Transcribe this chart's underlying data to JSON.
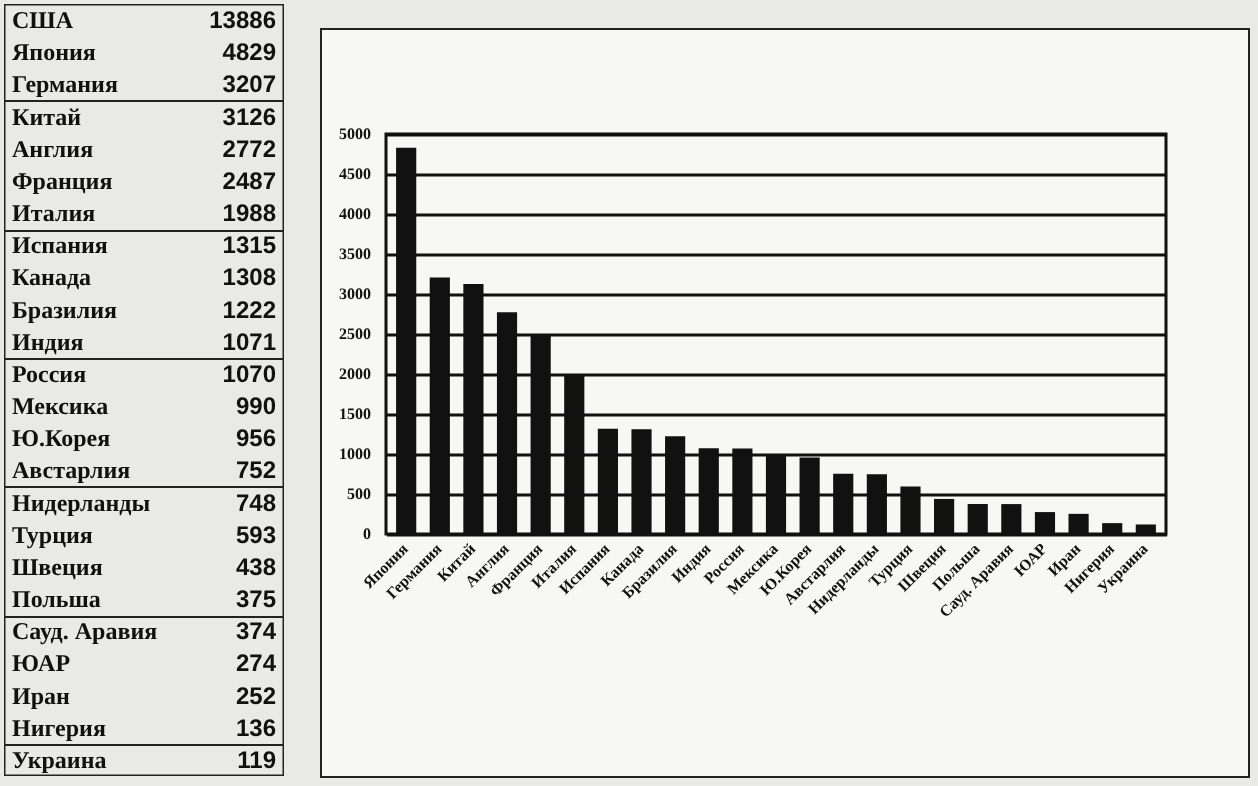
{
  "chart_data": [
    {
      "type": "other",
      "categories": [
        "США",
        "Япония",
        "Германия",
        "Китай",
        "Англия",
        "Франция",
        "Италия",
        "Испания",
        "Канада",
        "Бразилия",
        "Индия",
        "Россия",
        "Мексика",
        "Ю.Корея",
        "Австарлия",
        "Нидерланды",
        "Турция",
        "Швеция",
        "Польша",
        "Сауд. Аравия",
        "ЮАР",
        "Иран",
        "Нигерия",
        "Украина"
      ],
      "values": [
        13886,
        4829,
        3207,
        3126,
        2772,
        2487,
        1988,
        1315,
        1308,
        1222,
        1071,
        1070,
        990,
        956,
        752,
        748,
        593,
        438,
        375,
        374,
        274,
        252,
        136,
        119
      ],
      "data_labels": true
    },
    {
      "type": "bar",
      "categories": [
        "Япония",
        "Германия",
        "Китай",
        "Англия",
        "Франция",
        "Италия",
        "Испания",
        "Канада",
        "Бразилия",
        "Индия",
        "Россия",
        "Мексика",
        "Ю.Корея",
        "Австарлия",
        "Нидерланды",
        "Турция",
        "Швеция",
        "Польша",
        "Сауд. Аравия",
        "ЮАР",
        "Иран",
        "Нигерия",
        "Украина"
      ],
      "values": [
        4829,
        3207,
        3126,
        2772,
        2487,
        1988,
        1315,
        1308,
        1222,
        1071,
        1070,
        990,
        956,
        752,
        748,
        593,
        438,
        375,
        374,
        274,
        252,
        136,
        119
      ],
      "color": "#111111",
      "ylim": [
        0,
        5000
      ],
      "yticks": [
        0,
        500,
        1000,
        1500,
        2000,
        2500,
        3000,
        3500,
        4000,
        4500,
        5000
      ],
      "grid": "y"
    }
  ]
}
